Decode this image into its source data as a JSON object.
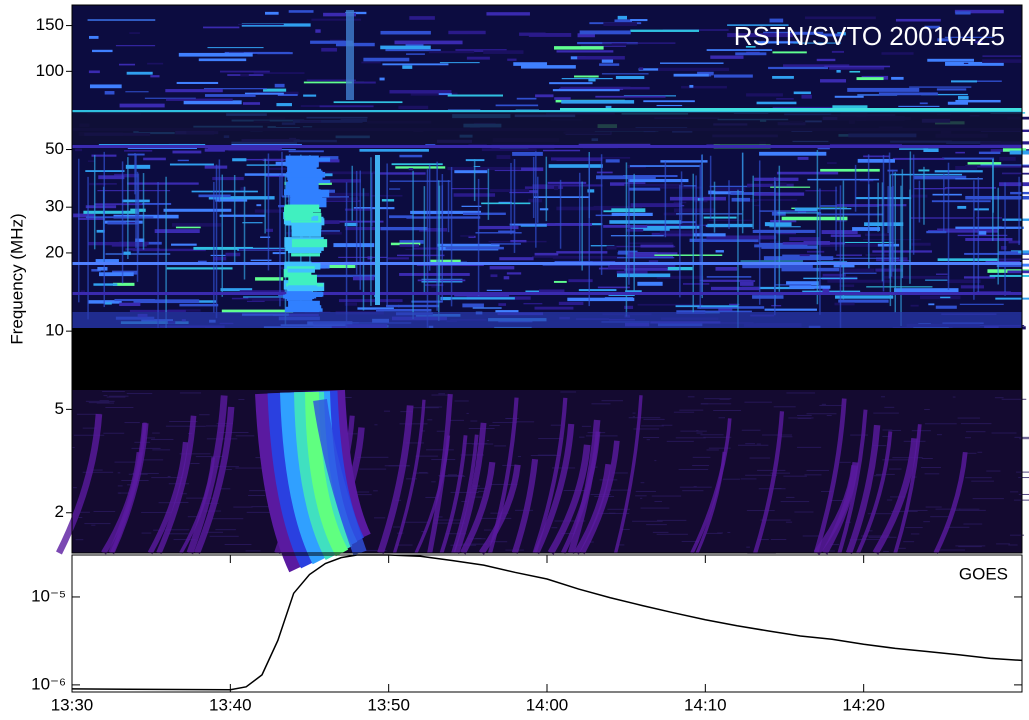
{
  "chart_data": [
    {
      "type": "spectrogram",
      "annotation": "RSTN/SVTO 20010425",
      "ylabel": "Frequency (MHz)",
      "yscale": "log",
      "ylim": [
        1.4,
        180
      ],
      "yticks": [
        2,
        5,
        10,
        20,
        30,
        50,
        100,
        150
      ]
    },
    {
      "type": "line",
      "annotation": "GOES",
      "x": [
        "13:30",
        "13:40",
        "13:41",
        "13:42",
        "13:43",
        "13:44",
        "13:45",
        "13:46",
        "13:47",
        "13:48",
        "13:50",
        "13:52",
        "13:54",
        "13:56",
        "13:58",
        "14:00",
        "14:02",
        "14:04",
        "14:06",
        "14:08",
        "14:10",
        "14:12",
        "14:14",
        "14:16",
        "14:18",
        "14:20",
        "14:22",
        "14:24",
        "14:26",
        "14:28",
        "14:30"
      ],
      "series": [
        {
          "color": "#000000",
          "values": [
            9e-07,
            8.8e-07,
            9.5e-07,
            1.3e-06,
            3.2e-06,
            1.1e-05,
            1.8e-05,
            2.4e-05,
            2.8e-05,
            3e-05,
            3e-05,
            2.9e-05,
            2.6e-05,
            2.3e-05,
            1.9e-05,
            1.6e-05,
            1.23e-05,
            9.8e-06,
            8e-06,
            6.6e-06,
            5.5e-06,
            4.7e-06,
            4.1e-06,
            3.6e-06,
            3.3e-06,
            2.9e-06,
            2.6e-06,
            2.4e-06,
            2.2e-06,
            2e-06,
            1.9e-06
          ]
        }
      ],
      "xlim": [
        "13:30",
        "14:30"
      ],
      "xticks": [
        "13:30",
        "13:40",
        "13:50",
        "14:00",
        "14:10",
        "14:20"
      ],
      "yscale": "log",
      "ylim": [
        8.3e-07,
        3e-05
      ],
      "yticks": [
        {
          "value": 1e-06,
          "label": "10⁻⁶"
        },
        {
          "value": 1e-05,
          "label": "10⁻⁵"
        }
      ]
    }
  ]
}
